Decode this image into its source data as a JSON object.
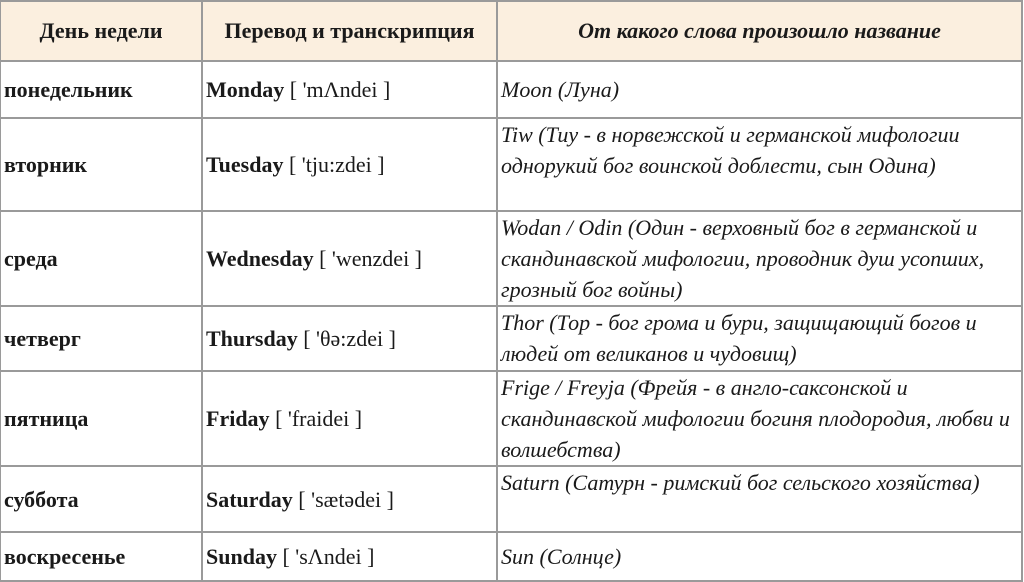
{
  "headers": [
    "День недели",
    "Перевод и транскрипция",
    "От какого слова произошло название"
  ],
  "header_bg": "#fbefdf",
  "rows": [
    {
      "day": "понедельник",
      "english": "Monday",
      "transcription": "[ 'mΛndei ]",
      "origin": "Moon (Луна)"
    },
    {
      "day": "вторник",
      "english": "Tuesday",
      "transcription": "[ 'tju:zdei ]",
      "origin": "Tiw (Тиу - в норвежской и германской мифологии однорукий бог воинской доблести, сын Одина)"
    },
    {
      "day": "среда",
      "english": "Wednesday",
      "transcription": "[ 'wenzdei ]",
      "origin": "Wodan / Odin (Один - верховный бог в германской и скандинавской мифологии, проводник душ усопших, грозный бог войны)"
    },
    {
      "day": "четверг",
      "english": "Thursday",
      "transcription": "[ 'θə:zdei ]",
      "origin": "Thor (Тор - бог грома и бури, защищающий богов и людей от великанов и чудовищ)"
    },
    {
      "day": "пятница",
      "english": "Friday",
      "transcription": "[ 'fraidei ]",
      "origin": "Frige / Freyja (Фрейя - в англо-саксонской и скандинавской мифологии богиня плодородия, любви и волшебства)"
    },
    {
      "day": "суббота",
      "english": "Saturday",
      "transcription": "[ 'sætədei ]",
      "origin": "Saturn (Сатурн - римский бог сельского хозяйства)"
    },
    {
      "day": "воскресенье",
      "english": "Sunday",
      "transcription": "[ 'sΛndei ]",
      "origin": "Sun (Солнце)"
    }
  ]
}
